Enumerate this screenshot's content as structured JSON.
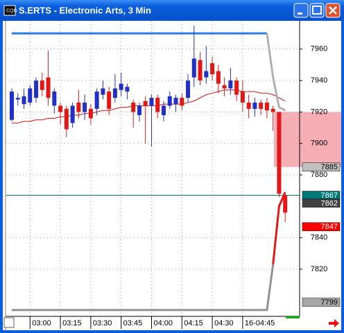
{
  "chart_data": {
    "type": "candlestick",
    "title": "S.ERTS - Electronic Arts, 3 Min",
    "categories": [
      null,
      null,
      null,
      "03:00",
      null,
      null,
      null,
      null,
      "03:15",
      null,
      null,
      null,
      null,
      "03:30",
      null,
      null,
      null,
      null,
      "03:45",
      null,
      null,
      null,
      null,
      "04:00",
      null,
      null,
      null,
      null,
      "04:15",
      null,
      null,
      null,
      null,
      "04:30",
      null,
      null,
      null,
      null,
      "16-04:45",
      null,
      null,
      null,
      null,
      null,
      null,
      null
    ],
    "open": [
      7915,
      7928,
      7925,
      7926,
      7929,
      7940,
      7942,
      7924,
      7924,
      7922,
      7913,
      7926,
      7920,
      7922,
      7922,
      7931,
      7933,
      7929,
      7934,
      7933,
      7926,
      7918,
      7927,
      7924,
      7929,
      7918,
      7924,
      7925,
      7929,
      7929,
      7942,
      7953,
      7942,
      7951,
      7946,
      7937,
      7935,
      7940,
      7933,
      7926,
      7922,
      7926,
      7926,
      7922,
      7920,
      7867
    ],
    "high": [
      7935,
      7932,
      7935,
      7937,
      7942,
      7945,
      7959,
      7935,
      7926,
      7924,
      7926,
      7934,
      7931,
      7925,
      7935,
      7940,
      7936,
      7944,
      7945,
      7938,
      7928,
      7926,
      7930,
      7931,
      7931,
      7927,
      7933,
      7931,
      7932,
      7944,
      7975,
      7958,
      7962,
      7955,
      7950,
      7942,
      7948,
      7942,
      7940,
      7931,
      7929,
      7928,
      7929,
      7924,
      7920,
      7868
    ],
    "low": [
      7914,
      7924,
      7922,
      7924,
      7926,
      7930,
      7924,
      7919,
      7912,
      7904,
      7910,
      7916,
      7915,
      7912,
      7918,
      7928,
      7918,
      7926,
      7930,
      7928,
      7910,
      7914,
      7900,
      7898,
      7916,
      7914,
      7922,
      7920,
      7921,
      7926,
      7936,
      7937,
      7938,
      7940,
      7932,
      7930,
      7931,
      7927,
      7920,
      7916,
      7917,
      7918,
      7916,
      7908,
      7866,
      7850
    ],
    "close": [
      7933,
      7929,
      7930,
      7935,
      7940,
      7934,
      7929,
      7933,
      7920,
      7909,
      7924,
      7920,
      7926,
      7916,
      7933,
      7935,
      7922,
      7935,
      7938,
      7936,
      7920,
      7924,
      7924,
      7929,
      7920,
      7924,
      7930,
      7929,
      7924,
      7940,
      7954,
      7940,
      7946,
      7944,
      7938,
      7935,
      7940,
      7931,
      7926,
      7922,
      7926,
      7922,
      7921,
      7920,
      7868,
      7856
    ],
    "up_color": "#2330c8",
    "down_color": "#e01818",
    "lines": [
      {
        "color": "#d01010",
        "width": 1,
        "values": [
          7913,
          7913,
          7914,
          7914,
          7915,
          7915,
          7916,
          7916,
          7917,
          7917,
          7918,
          7918,
          7919,
          7919,
          7920,
          7921,
          7921,
          7922,
          7923,
          7923,
          7924,
          7924,
          7924,
          7924,
          7924,
          7925,
          7925,
          7925,
          7925,
          7926,
          7927,
          7929,
          7931,
          7932,
          7933,
          7934,
          7934,
          7934,
          7933,
          7933,
          7933,
          7932,
          7932,
          7931,
          7929,
          7927
        ]
      },
      {
        "color": "#2a7de0",
        "width": 3,
        "values": [
          7970,
          7970,
          7970,
          7970,
          7970,
          7970,
          7970,
          7970,
          7970,
          7970,
          7970,
          7970,
          7970,
          7970,
          7970,
          7970,
          7970,
          7970,
          7970,
          7970,
          7970,
          7970,
          7970,
          7970,
          7970,
          7970,
          7970,
          7970,
          7970,
          7970,
          7970,
          7970,
          7970,
          7970,
          7970,
          7970,
          7970,
          7970,
          7970,
          7970,
          7970,
          7970,
          7970,
          null,
          null,
          null
        ]
      },
      {
        "color": "#b0b0b0",
        "width": 3,
        "values": [
          null,
          null,
          null,
          null,
          null,
          null,
          null,
          null,
          null,
          null,
          null,
          null,
          null,
          null,
          null,
          null,
          null,
          null,
          null,
          null,
          null,
          null,
          null,
          null,
          null,
          null,
          null,
          null,
          null,
          null,
          null,
          null,
          null,
          null,
          null,
          null,
          null,
          null,
          null,
          null,
          null,
          null,
          7970,
          7942,
          7923,
          7921
        ]
      },
      {
        "color": "#909090",
        "width": 3,
        "values": [
          7794,
          7794,
          7794,
          7794,
          7794,
          7794,
          7794,
          7794,
          7794,
          7794,
          7794,
          7794,
          7794,
          7794,
          7794,
          7794,
          7794,
          7794,
          7794,
          7794,
          7794,
          7794,
          7794,
          7794,
          7794,
          7794,
          7794,
          7794,
          7794,
          7794,
          7794,
          7794,
          7794,
          7794,
          7794,
          7794,
          7794,
          7794,
          7794,
          7794,
          7794,
          7794,
          7794,
          7823,
          null,
          null
        ]
      },
      {
        "color": "#e01818",
        "width": 3,
        "values": [
          null,
          null,
          null,
          null,
          null,
          null,
          null,
          null,
          null,
          null,
          null,
          null,
          null,
          null,
          null,
          null,
          null,
          null,
          null,
          null,
          null,
          null,
          null,
          null,
          null,
          null,
          null,
          null,
          null,
          null,
          null,
          null,
          null,
          null,
          null,
          null,
          null,
          null,
          null,
          null,
          null,
          null,
          null,
          7823,
          7860,
          7869
        ]
      }
    ],
    "zone": {
      "from": 7885,
      "to": 7920,
      "color": "#f4a0a8"
    },
    "markers": [
      {
        "value": 7885,
        "color": "#c0c0c0",
        "text_color": "#000000"
      },
      {
        "value": 7867,
        "color": "#007878",
        "text_color": "#ffffff",
        "line": true
      },
      {
        "value": 7862,
        "color": "#404040",
        "text_color": "#ffffff"
      },
      {
        "value": 7847,
        "color": "#ff0000",
        "text_color": "#ffffff"
      },
      {
        "value": 7799,
        "color": "#a8a8a8",
        "text_color": "#000000"
      }
    ],
    "ylim": [
      7790,
      7978
    ],
    "yticks": [
      7820,
      7840,
      7880,
      7900,
      7920,
      7940,
      7960
    ],
    "grid": true
  }
}
